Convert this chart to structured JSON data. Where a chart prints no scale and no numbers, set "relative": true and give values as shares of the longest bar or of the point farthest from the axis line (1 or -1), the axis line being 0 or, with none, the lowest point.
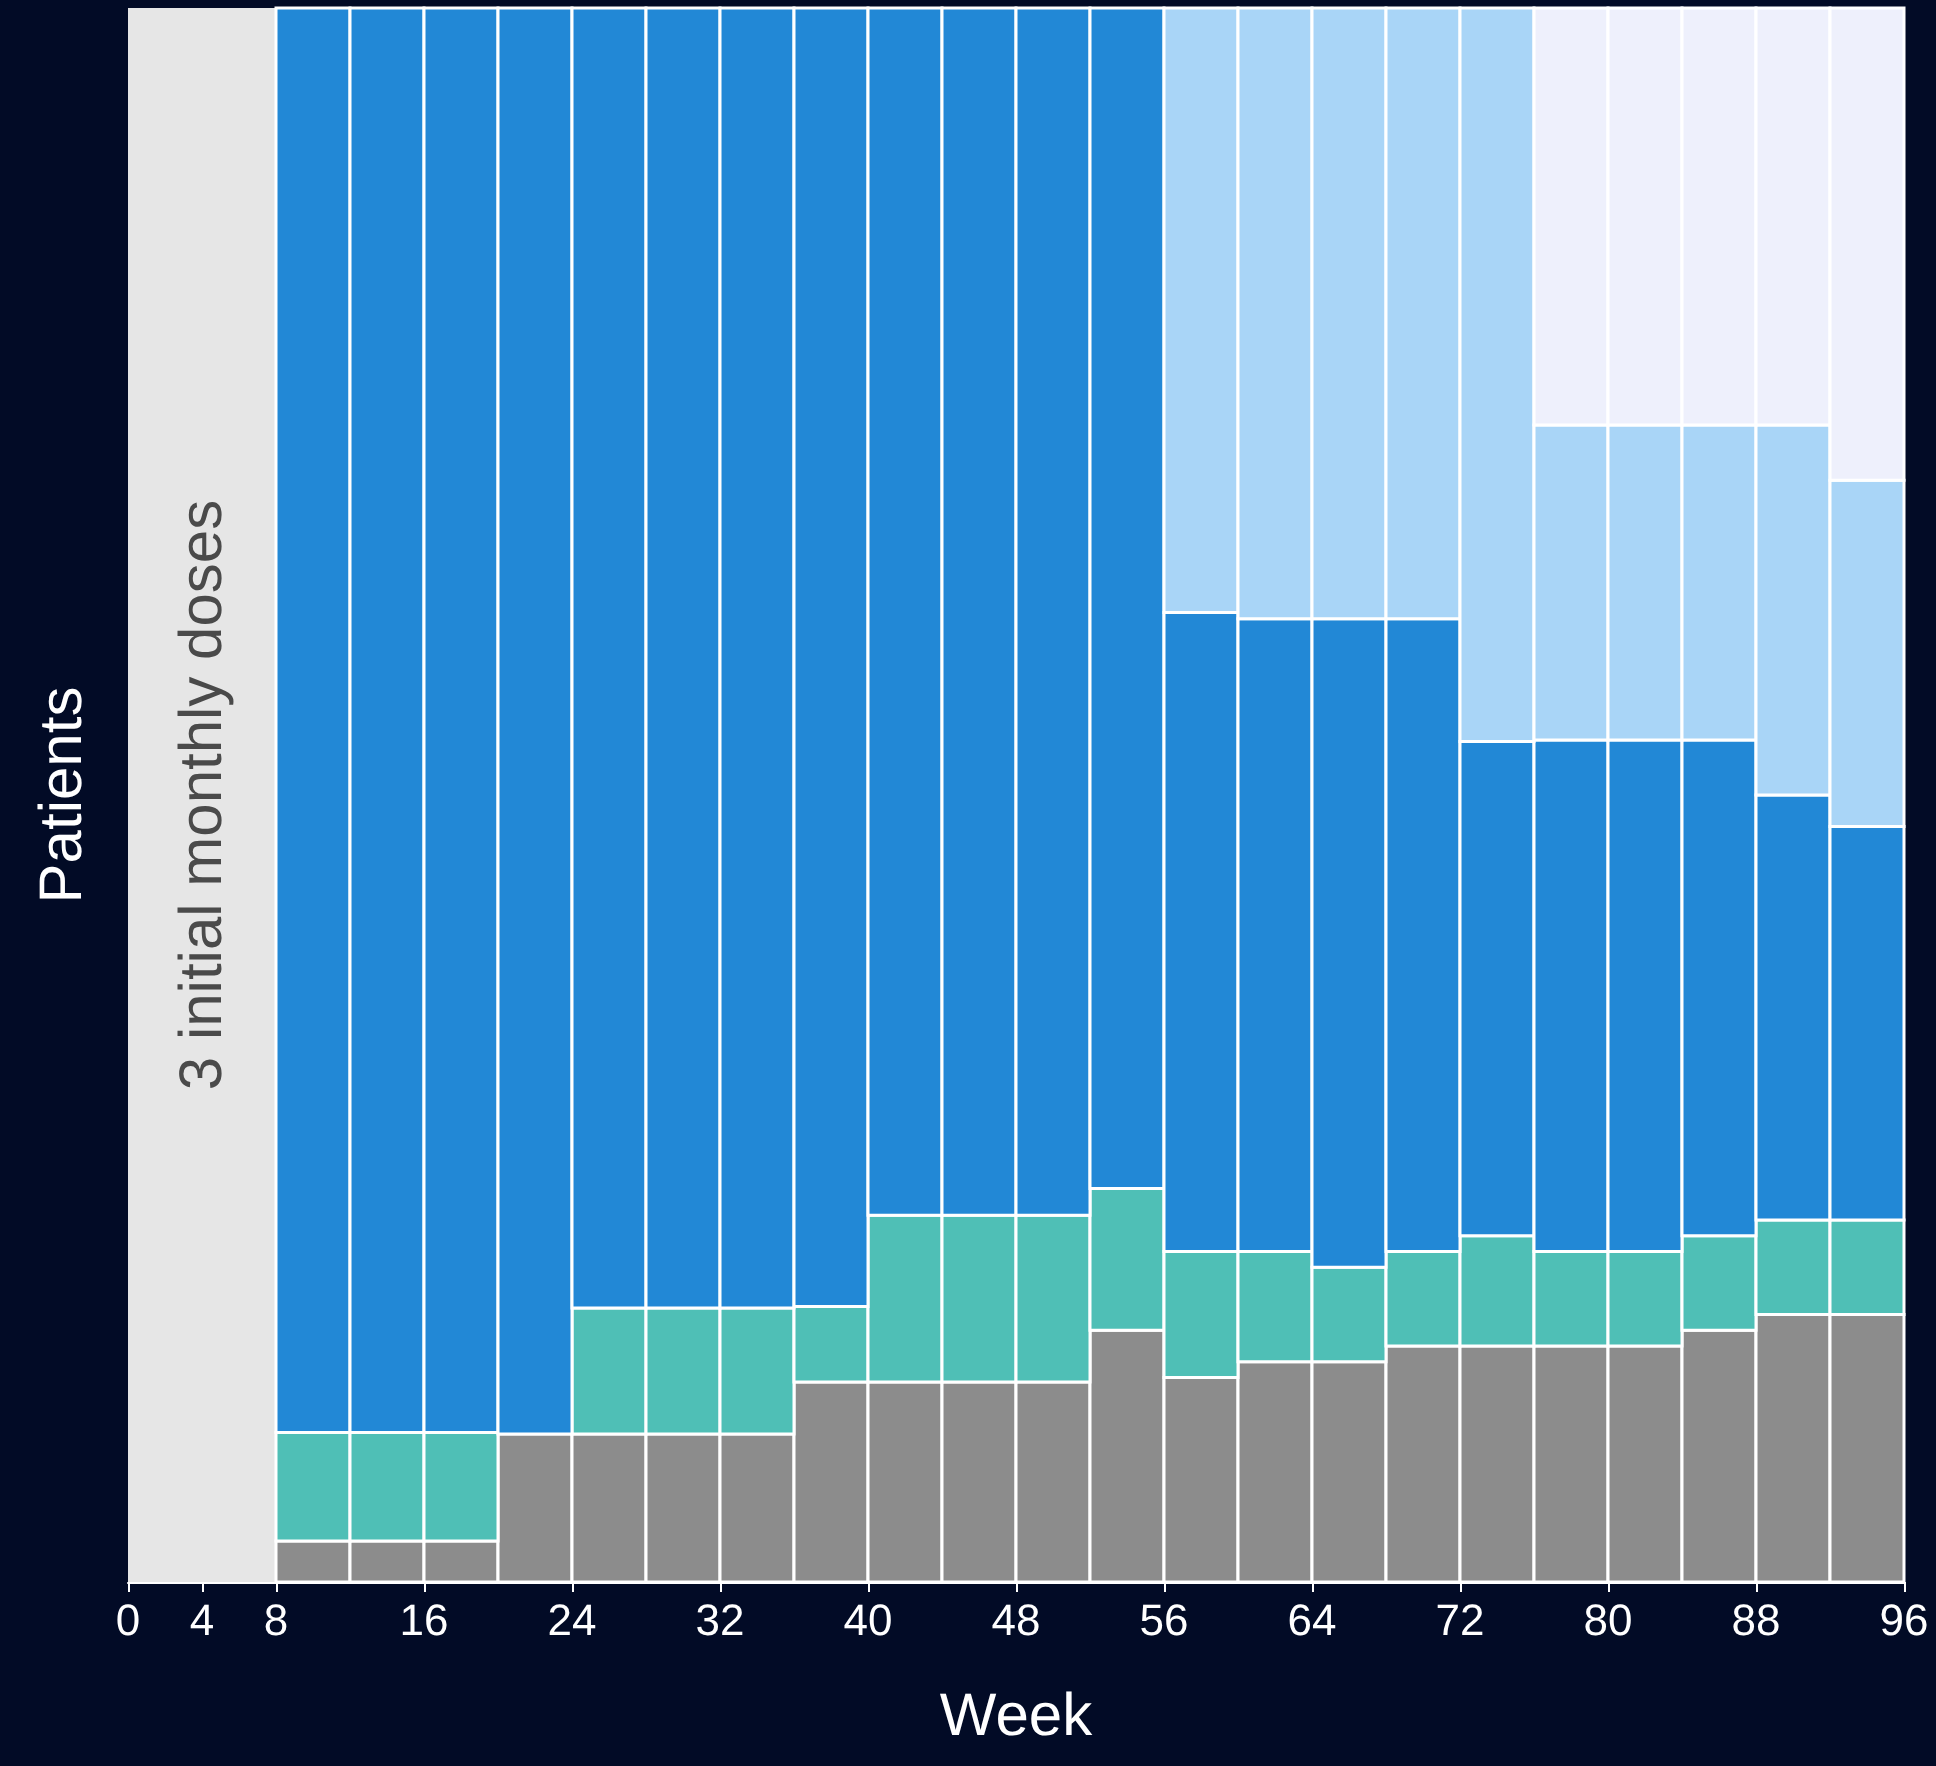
{
  "chart_data": {
    "type": "bar",
    "stacked": true,
    "relative": true,
    "xlabel": "Week",
    "ylabel": "Patients",
    "x": [
      10,
      14,
      18,
      22,
      26,
      30,
      34,
      38,
      42,
      46,
      50,
      54,
      58,
      62,
      66,
      70,
      74,
      78,
      82,
      86,
      90,
      94
    ],
    "xlim": [
      0,
      96
    ],
    "xticks": [
      0,
      4,
      8,
      16,
      24,
      32,
      40,
      48,
      56,
      64,
      72,
      80,
      88,
      96
    ],
    "grid": false,
    "series": [
      {
        "color": "#8c8c8c",
        "values": [
          0.026,
          0.026,
          0.026,
          0.094,
          0.094,
          0.094,
          0.094,
          0.127,
          0.127,
          0.127,
          0.127,
          0.16,
          0.13,
          0.14,
          0.14,
          0.15,
          0.15,
          0.15,
          0.15,
          0.16,
          0.17,
          0.17
        ]
      },
      {
        "color": "#4fbfb6",
        "values": [
          0.069,
          0.069,
          0.069,
          0,
          0.08,
          0.08,
          0.08,
          0.048,
          0.106,
          0.106,
          0.106,
          0.09,
          0.08,
          0.07,
          0.06,
          0.06,
          0.07,
          0.06,
          0.06,
          0.06,
          0.06,
          0.06
        ]
      },
      {
        "color": "#2288d6",
        "values": [
          0.905,
          0.905,
          0.905,
          0.906,
          0.826,
          0.826,
          0.826,
          0.825,
          0.767,
          0.767,
          0.767,
          0.75,
          0.406,
          0.402,
          0.412,
          0.402,
          0.314,
          0.325,
          0.325,
          0.315,
          0.27,
          0.25
        ]
      },
      {
        "color": "#a9d5f7",
        "values": [
          0,
          0,
          0,
          0,
          0,
          0,
          0,
          0,
          0,
          0,
          0,
          0,
          0.384,
          0.388,
          0.388,
          0.388,
          0.466,
          0.2,
          0.2,
          0.2,
          0.235,
          0.22
        ]
      },
      {
        "color": "#eef0fc",
        "values": [
          0,
          0,
          0,
          0,
          0,
          0,
          0,
          0,
          0,
          0,
          0,
          0,
          0,
          0,
          0,
          0,
          0,
          0.265,
          0.265,
          0.265,
          0.265,
          0.3
        ]
      }
    ],
    "bands": [
      {
        "axis": "x",
        "from": 0,
        "to": 8,
        "label": "3 initial monthly doses",
        "color": "#e6e6e6"
      }
    ]
  }
}
